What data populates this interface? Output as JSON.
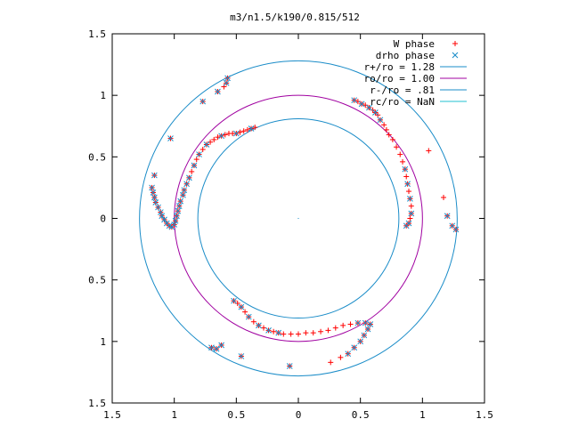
{
  "chart_data": {
    "type": "scatter",
    "title": "m3/n1.5/k190/0.815/512",
    "xlim": [
      -1.5,
      1.5
    ],
    "ylim": [
      -1.5,
      1.5
    ],
    "grid": false,
    "legend_position": "top-right",
    "xticks": [
      {
        "value": -1.5,
        "label": "1.5"
      },
      {
        "value": -1.0,
        "label": "1"
      },
      {
        "value": -0.5,
        "label": "0.5"
      },
      {
        "value": 0.0,
        "label": "0"
      },
      {
        "value": 0.5,
        "label": "0.5"
      },
      {
        "value": 1.0,
        "label": "1"
      },
      {
        "value": 1.5,
        "label": "1.5"
      }
    ],
    "yticks": [
      {
        "value": 1.5,
        "label": "1.5"
      },
      {
        "value": 1.0,
        "label": "1"
      },
      {
        "value": 0.5,
        "label": "0.5"
      },
      {
        "value": 0.0,
        "label": "0"
      },
      {
        "value": -0.5,
        "label": "0.5"
      },
      {
        "value": -1.0,
        "label": "1"
      },
      {
        "value": -1.5,
        "label": "1.5"
      }
    ],
    "circles": [
      {
        "name": "r+/ro = 1.28",
        "radius": 1.28,
        "color": "#1a8cc8"
      },
      {
        "name": "ro/ro = 1.00",
        "radius": 1.0,
        "color": "#a000a0"
      },
      {
        "name": "r-/ro = .81",
        "radius": 0.81,
        "color": "#1a8cc8"
      },
      {
        "name": "rc/ro = NaN",
        "radius": null,
        "color": "#20c0d0"
      }
    ],
    "series": [
      {
        "name": "W phase",
        "marker": "plus",
        "color": "#ff0000",
        "points": [
          [
            -1.18,
            0.25
          ],
          [
            -1.17,
            0.21
          ],
          [
            -1.16,
            0.17
          ],
          [
            -1.15,
            0.13
          ],
          [
            -1.13,
            0.09
          ],
          [
            -1.11,
            0.05
          ],
          [
            -1.1,
            0.02
          ],
          [
            -1.08,
            -0.01
          ],
          [
            -1.06,
            -0.04
          ],
          [
            -1.04,
            -0.06
          ],
          [
            -1.02,
            -0.07
          ],
          [
            -1.0,
            -0.05
          ],
          [
            -0.99,
            -0.02
          ],
          [
            -0.98,
            0.02
          ],
          [
            -0.97,
            0.06
          ],
          [
            -0.96,
            0.1
          ],
          [
            -0.95,
            0.14
          ],
          [
            -0.93,
            0.19
          ],
          [
            -0.92,
            0.23
          ],
          [
            -0.9,
            0.28
          ],
          [
            -0.88,
            0.33
          ],
          [
            -0.86,
            0.38
          ],
          [
            -0.84,
            0.43
          ],
          [
            -0.82,
            0.48
          ],
          [
            -0.8,
            0.52
          ],
          [
            -0.77,
            0.56
          ],
          [
            -0.74,
            0.6
          ],
          [
            -0.71,
            0.62
          ],
          [
            -0.68,
            0.64
          ],
          [
            -0.65,
            0.66
          ],
          [
            -0.62,
            0.67
          ],
          [
            -0.59,
            0.68
          ],
          [
            -0.56,
            0.69
          ],
          [
            -0.53,
            0.69
          ],
          [
            -0.5,
            0.69
          ],
          [
            -0.47,
            0.7
          ],
          [
            -0.44,
            0.71
          ],
          [
            -0.41,
            0.72
          ],
          [
            -0.38,
            0.73
          ],
          [
            -0.35,
            0.74
          ],
          [
            -1.16,
            0.35
          ],
          [
            -1.03,
            0.65
          ],
          [
            -0.77,
            0.95
          ],
          [
            -0.65,
            1.03
          ],
          [
            -0.6,
            1.07
          ],
          [
            -0.58,
            1.1
          ],
          [
            -0.57,
            1.14
          ],
          [
            0.45,
            0.96
          ],
          [
            0.48,
            0.95
          ],
          [
            0.51,
            0.93
          ],
          [
            0.54,
            0.92
          ],
          [
            0.57,
            0.9
          ],
          [
            0.6,
            0.88
          ],
          [
            0.62,
            0.86
          ],
          [
            0.64,
            0.84
          ],
          [
            0.66,
            0.8
          ],
          [
            0.69,
            0.76
          ],
          [
            0.71,
            0.72
          ],
          [
            0.73,
            0.68
          ],
          [
            0.76,
            0.64
          ],
          [
            0.79,
            0.58
          ],
          [
            0.82,
            0.52
          ],
          [
            0.84,
            0.46
          ],
          [
            0.86,
            0.4
          ],
          [
            0.87,
            0.34
          ],
          [
            0.88,
            0.28
          ],
          [
            0.89,
            0.22
          ],
          [
            0.9,
            0.16
          ],
          [
            0.91,
            0.1
          ],
          [
            0.91,
            0.04
          ],
          [
            0.9,
            0.0
          ],
          [
            0.89,
            -0.04
          ],
          [
            0.87,
            -0.06
          ],
          [
            1.05,
            0.55
          ],
          [
            1.17,
            0.17
          ],
          [
            1.2,
            0.02
          ],
          [
            1.24,
            -0.06
          ],
          [
            1.27,
            -0.09
          ],
          [
            -0.52,
            -0.67
          ],
          [
            -0.49,
            -0.69
          ],
          [
            -0.46,
            -0.72
          ],
          [
            -0.43,
            -0.76
          ],
          [
            -0.4,
            -0.8
          ],
          [
            -0.36,
            -0.84
          ],
          [
            -0.32,
            -0.87
          ],
          [
            -0.28,
            -0.89
          ],
          [
            -0.24,
            -0.91
          ],
          [
            -0.2,
            -0.92
          ],
          [
            -0.16,
            -0.93
          ],
          [
            -0.12,
            -0.94
          ],
          [
            -0.06,
            -0.94
          ],
          [
            0.0,
            -0.94
          ],
          [
            0.06,
            -0.93
          ],
          [
            0.12,
            -0.93
          ],
          [
            0.18,
            -0.92
          ],
          [
            0.24,
            -0.91
          ],
          [
            0.3,
            -0.89
          ],
          [
            0.36,
            -0.87
          ],
          [
            0.42,
            -0.86
          ],
          [
            0.48,
            -0.85
          ],
          [
            0.54,
            -0.85
          ],
          [
            0.58,
            -0.86
          ],
          [
            0.56,
            -0.9
          ],
          [
            0.53,
            -0.95
          ],
          [
            0.5,
            -1.0
          ],
          [
            0.45,
            -1.05
          ],
          [
            0.4,
            -1.1
          ],
          [
            0.34,
            -1.13
          ],
          [
            0.26,
            -1.17
          ],
          [
            -0.07,
            -1.2
          ],
          [
            -0.46,
            -1.12
          ],
          [
            -0.66,
            -1.06
          ],
          [
            -0.7,
            -1.05
          ],
          [
            -0.62,
            -1.03
          ]
        ]
      },
      {
        "name": "drho phase",
        "marker": "cross",
        "color": "#1a8cc8",
        "points": [
          [
            -1.18,
            0.25
          ],
          [
            -1.17,
            0.21
          ],
          [
            -1.16,
            0.17
          ],
          [
            -1.15,
            0.13
          ],
          [
            -1.13,
            0.09
          ],
          [
            -1.11,
            0.05
          ],
          [
            -1.1,
            0.02
          ],
          [
            -1.08,
            -0.01
          ],
          [
            -1.06,
            -0.04
          ],
          [
            -1.04,
            -0.06
          ],
          [
            -1.02,
            -0.07
          ],
          [
            -1.0,
            -0.05
          ],
          [
            -0.99,
            -0.02
          ],
          [
            -0.98,
            0.02
          ],
          [
            -0.97,
            0.06
          ],
          [
            -0.96,
            0.1
          ],
          [
            -0.95,
            0.14
          ],
          [
            -0.93,
            0.19
          ],
          [
            -0.92,
            0.23
          ],
          [
            -0.9,
            0.28
          ],
          [
            -0.88,
            0.33
          ],
          [
            -0.84,
            0.43
          ],
          [
            -0.8,
            0.52
          ],
          [
            -0.74,
            0.6
          ],
          [
            -0.62,
            0.67
          ],
          [
            -0.5,
            0.69
          ],
          [
            -0.38,
            0.73
          ],
          [
            -1.16,
            0.35
          ],
          [
            -1.03,
            0.65
          ],
          [
            -0.77,
            0.95
          ],
          [
            -0.65,
            1.03
          ],
          [
            -0.58,
            1.1
          ],
          [
            -0.57,
            1.14
          ],
          [
            0.45,
            0.96
          ],
          [
            0.51,
            0.93
          ],
          [
            0.57,
            0.9
          ],
          [
            0.62,
            0.86
          ],
          [
            0.66,
            0.8
          ],
          [
            0.86,
            0.4
          ],
          [
            0.88,
            0.28
          ],
          [
            0.9,
            0.16
          ],
          [
            0.91,
            0.04
          ],
          [
            0.89,
            -0.04
          ],
          [
            0.87,
            -0.06
          ],
          [
            1.2,
            0.02
          ],
          [
            1.24,
            -0.06
          ],
          [
            1.27,
            -0.09
          ],
          [
            -0.52,
            -0.67
          ],
          [
            -0.46,
            -0.72
          ],
          [
            -0.4,
            -0.8
          ],
          [
            -0.32,
            -0.87
          ],
          [
            -0.24,
            -0.91
          ],
          [
            -0.16,
            -0.93
          ],
          [
            0.48,
            -0.85
          ],
          [
            0.54,
            -0.85
          ],
          [
            0.58,
            -0.86
          ],
          [
            0.56,
            -0.9
          ],
          [
            0.53,
            -0.95
          ],
          [
            0.5,
            -1.0
          ],
          [
            0.45,
            -1.05
          ],
          [
            0.4,
            -1.1
          ],
          [
            -0.07,
            -1.2
          ],
          [
            -0.46,
            -1.12
          ],
          [
            -0.66,
            -1.06
          ],
          [
            -0.7,
            -1.05
          ],
          [
            -0.62,
            -1.03
          ]
        ]
      }
    ]
  }
}
